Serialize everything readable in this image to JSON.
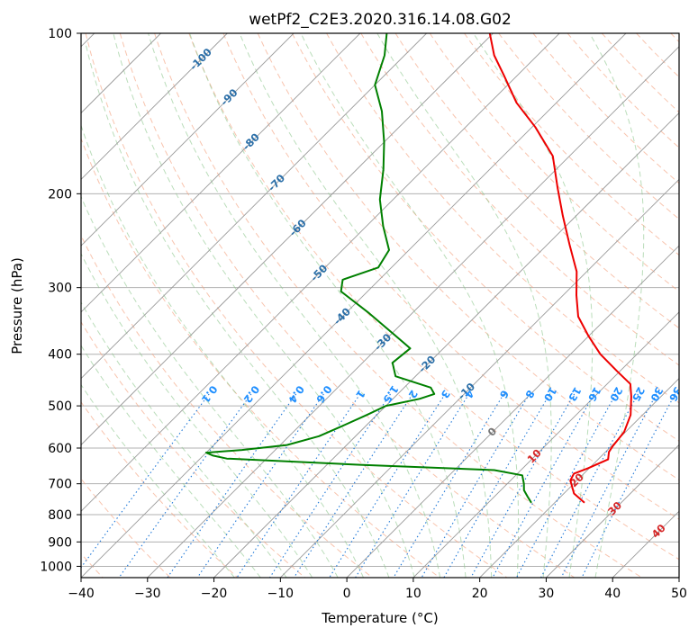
{
  "chart_data": {
    "type": "line",
    "diagram": "skew-t log-p",
    "title": "wetPf2_C2E3.2020.316.14.08.G02",
    "xlabel": "Temperature (°C)",
    "ylabel": "Pressure (hPa)",
    "xlim": [
      -40,
      50
    ],
    "ylim": [
      1050,
      100
    ],
    "y_scale": "log",
    "grid": true,
    "x_ticks": [
      -40,
      -30,
      -20,
      -10,
      0,
      10,
      20,
      30,
      40,
      50
    ],
    "y_ticks": [
      100,
      200,
      300,
      400,
      500,
      600,
      700,
      800,
      900,
      1000
    ],
    "series": [
      {
        "role": "temperature",
        "color": "#ee0000",
        "points": [
          {
            "p": 760,
            "t": 24.5
          },
          {
            "p": 730,
            "t": 21.5
          },
          {
            "p": 690,
            "t": 19.0
          },
          {
            "p": 670,
            "t": 18.5
          },
          {
            "p": 655,
            "t": 19.8
          },
          {
            "p": 630,
            "t": 21.5
          },
          {
            "p": 610,
            "t": 20.5
          },
          {
            "p": 595,
            "t": 20.2
          },
          {
            "p": 560,
            "t": 19.8
          },
          {
            "p": 520,
            "t": 18.2
          },
          {
            "p": 480,
            "t": 15.5
          },
          {
            "p": 455,
            "t": 13.5
          },
          {
            "p": 430,
            "t": 9.5
          },
          {
            "p": 400,
            "t": 4.5
          },
          {
            "p": 370,
            "t": 0.0
          },
          {
            "p": 340,
            "t": -4.5
          },
          {
            "p": 310,
            "t": -8.0
          },
          {
            "p": 280,
            "t": -11.5
          },
          {
            "p": 250,
            "t": -16.5
          },
          {
            "p": 220,
            "t": -22.0
          },
          {
            "p": 195,
            "t": -27.0
          },
          {
            "p": 170,
            "t": -32.5
          },
          {
            "p": 150,
            "t": -39.5
          },
          {
            "p": 135,
            "t": -46.0
          },
          {
            "p": 120,
            "t": -52.0
          },
          {
            "p": 110,
            "t": -56.5
          },
          {
            "p": 100,
            "t": -60.5
          }
        ]
      },
      {
        "role": "dewpoint",
        "color": "#008000",
        "points": [
          {
            "p": 760,
            "t": 16.5
          },
          {
            "p": 740,
            "t": 15.0
          },
          {
            "p": 720,
            "t": 13.5
          },
          {
            "p": 700,
            "t": 12.5
          },
          {
            "p": 675,
            "t": 11.0
          },
          {
            "p": 660,
            "t": 6.0
          },
          {
            "p": 645,
            "t": -15.0
          },
          {
            "p": 628,
            "t": -36.0
          },
          {
            "p": 620,
            "t": -38.5
          },
          {
            "p": 612,
            "t": -40.0
          },
          {
            "p": 605,
            "t": -35.0
          },
          {
            "p": 592,
            "t": -29.0
          },
          {
            "p": 570,
            "t": -25.5
          },
          {
            "p": 545,
            "t": -23.5
          },
          {
            "p": 520,
            "t": -21.5
          },
          {
            "p": 500,
            "t": -20.0
          },
          {
            "p": 485,
            "t": -16.0
          },
          {
            "p": 475,
            "t": -14.5
          },
          {
            "p": 462,
            "t": -16.0
          },
          {
            "p": 440,
            "t": -23.0
          },
          {
            "p": 415,
            "t": -25.5
          },
          {
            "p": 390,
            "t": -25.0
          },
          {
            "p": 365,
            "t": -30.0
          },
          {
            "p": 335,
            "t": -36.5
          },
          {
            "p": 305,
            "t": -44.0
          },
          {
            "p": 290,
            "t": -45.5
          },
          {
            "p": 275,
            "t": -42.0
          },
          {
            "p": 255,
            "t": -43.0
          },
          {
            "p": 230,
            "t": -47.5
          },
          {
            "p": 205,
            "t": -52.0
          },
          {
            "p": 180,
            "t": -56.0
          },
          {
            "p": 160,
            "t": -60.0
          },
          {
            "p": 140,
            "t": -65.0
          },
          {
            "p": 125,
            "t": -70.0
          },
          {
            "p": 110,
            "t": -73.0
          },
          {
            "p": 100,
            "t": -76.0
          }
        ]
      }
    ],
    "isotherm_labels": [
      -100,
      -90,
      -80,
      -70,
      -60,
      -50,
      -40,
      -30,
      -20,
      -10,
      0,
      10,
      20,
      30,
      40
    ],
    "mixing_ratio_labels": [
      "0.1",
      "0.2",
      "0.4",
      "0.6",
      "1",
      "1.5",
      "2",
      "3",
      "4",
      "6",
      "8",
      "10",
      "13",
      "16",
      "20",
      "25",
      "30",
      "36"
    ]
  }
}
